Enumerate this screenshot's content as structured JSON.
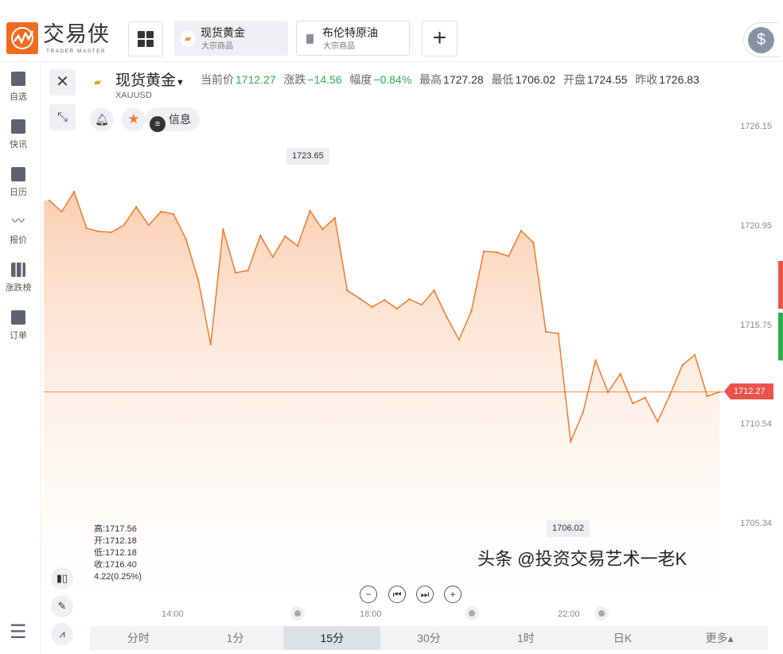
{
  "app": {
    "name": "交易侠",
    "tagline": "TRADER MASTER"
  },
  "tabs": [
    {
      "label": "现货黄金",
      "sub": "大宗商品",
      "active": true
    },
    {
      "label": "布伦特原油",
      "sub": "大宗商品",
      "active": false
    }
  ],
  "sidebar": {
    "items": [
      {
        "label": "自选",
        "icon": "bookmark-plus-icon"
      },
      {
        "label": "快讯",
        "icon": "list-icon"
      },
      {
        "label": "日历",
        "icon": "calendar-icon"
      },
      {
        "label": "报价",
        "icon": "line-chart-icon"
      },
      {
        "label": "涨跌榜",
        "icon": "bar-chart-icon"
      },
      {
        "label": "订单",
        "icon": "clipboard-icon"
      }
    ]
  },
  "instrument": {
    "name": "现货黄金",
    "symbol": "XAUUSD",
    "info_label": "信息"
  },
  "quote": {
    "current_label": "当前价",
    "current": "1712.27",
    "change_label": "涨跌",
    "change": "−14.56",
    "pct_label": "幅度",
    "pct": "−0.84%",
    "high_label": "最高",
    "high": "1727.28",
    "low_label": "最低",
    "low": "1706.02",
    "open_label": "开盘",
    "open": "1724.55",
    "prev_label": "昨收",
    "prev": "1726.83"
  },
  "ohlc": {
    "high": "高:1717.56",
    "open": "开:1712.18",
    "low": "低:1712.18",
    "close": "收:1716.40",
    "change": "4.22(0.25%)"
  },
  "periods": [
    "分时",
    "1分",
    "15分",
    "30分",
    "1时",
    "日K",
    "更多▴"
  ],
  "active_period": "15分",
  "watermark": "头条 @投资交易艺术一老K",
  "colors": {
    "line": "#f07a2a",
    "price_tag": "#e9534a",
    "green": "#2eab4e",
    "brand": "#f26b1d"
  },
  "chart_data": {
    "type": "area",
    "y_ticks": [
      "1726.15",
      "1720.95",
      "1715.75",
      "1710.54",
      "1705.34"
    ],
    "ylim": [
      1704.5,
      1727.5
    ],
    "x_tick_labels": [
      "14:00",
      "18:00",
      "22:00"
    ],
    "x": [
      "11:30",
      "11:45",
      "12:00",
      "12:15",
      "12:30",
      "12:45",
      "13:00",
      "13:15",
      "13:30",
      "13:45",
      "14:00",
      "14:15",
      "14:30",
      "14:45",
      "15:00",
      "15:15",
      "15:30",
      "15:45",
      "16:00",
      "16:15",
      "16:30",
      "16:45",
      "17:00",
      "17:15",
      "17:30",
      "17:45",
      "18:00",
      "18:15",
      "18:30",
      "18:45",
      "19:00",
      "19:15",
      "19:30",
      "19:45",
      "20:00",
      "20:15",
      "20:30",
      "20:45",
      "21:00",
      "21:15",
      "21:30",
      "21:45",
      "22:00",
      "22:15",
      "22:30",
      "22:45",
      "23:00",
      "23:15",
      "23:30",
      "23:45",
      "00:00",
      "00:15",
      "00:30",
      "00:45",
      "01:00"
    ],
    "values": [
      1722.28,
      1721.7,
      1722.74,
      1720.83,
      1720.66,
      1720.62,
      1720.99,
      1721.95,
      1720.99,
      1721.7,
      1721.57,
      1720.28,
      1718.12,
      1714.75,
      1720.78,
      1718.5,
      1718.62,
      1720.45,
      1719.33,
      1720.41,
      1719.91,
      1721.74,
      1720.78,
      1721.37,
      1717.58,
      1717.16,
      1716.71,
      1717.08,
      1716.62,
      1717.12,
      1716.83,
      1717.58,
      1716.21,
      1715.0,
      1716.5,
      1719.62,
      1719.58,
      1719.37,
      1720.7,
      1720.08,
      1715.42,
      1715.33,
      1709.68,
      1711.22,
      1713.92,
      1712.26,
      1713.21,
      1711.67,
      1711.97,
      1710.72,
      1712.13,
      1713.67,
      1714.21,
      1712.05,
      1712.27
    ],
    "max_label": "1723.65",
    "min_label": "1706.02",
    "last_price": "1712.27"
  }
}
